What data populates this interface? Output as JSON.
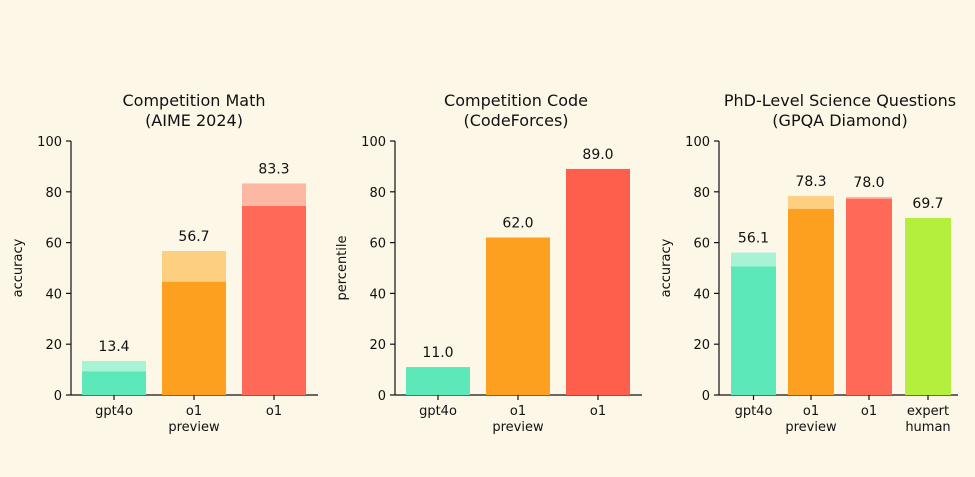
{
  "chart_data": [
    {
      "type": "bar",
      "title": [
        "Competition Math",
        "(AIME 2024)"
      ],
      "ylabel": "accuracy",
      "ylim": [
        0,
        100
      ],
      "yticks": [
        "0",
        "20",
        "40",
        "60",
        "80",
        "100"
      ],
      "categories": [
        [
          "gpt4o"
        ],
        [
          "o1",
          "preview"
        ],
        [
          "o1"
        ]
      ],
      "values": [
        13.4,
        56.7,
        83.3
      ],
      "base_values": [
        9.3,
        44.6,
        74.4
      ],
      "labels": [
        "13.4",
        "56.7",
        "83.3"
      ],
      "colors": [
        "#5ce8b9",
        "#fda020",
        "#fe6a57"
      ],
      "top_colors": [
        "#a8f2d6",
        "#fdd081",
        "#fdb8a4"
      ]
    },
    {
      "type": "bar",
      "title": [
        "Competition Code",
        "(CodeForces)"
      ],
      "ylabel": "percentile",
      "ylim": [
        0,
        100
      ],
      "yticks": [
        "0",
        "20",
        "40",
        "60",
        "80",
        "100"
      ],
      "categories": [
        [
          "gpt4o"
        ],
        [
          "o1",
          "preview"
        ],
        [
          "o1"
        ]
      ],
      "values": [
        11.0,
        62.0,
        89.0
      ],
      "base_values": [
        11.0,
        62.0,
        89.0
      ],
      "labels": [
        "11.0",
        "62.0",
        "89.0"
      ],
      "colors": [
        "#5ce8b9",
        "#fda020",
        "#fe5f4d"
      ],
      "top_colors": [
        "#a8f2d6",
        "#fdd081",
        "#fdb8a4"
      ]
    },
    {
      "type": "bar",
      "title": [
        "PhD-Level Science Questions",
        "(GPQA Diamond)"
      ],
      "ylabel": "accuracy",
      "ylim": [
        0,
        100
      ],
      "yticks": [
        "0",
        "20",
        "40",
        "60",
        "80",
        "100"
      ],
      "categories": [
        [
          "gpt4o"
        ],
        [
          "o1",
          "preview"
        ],
        [
          "o1"
        ],
        [
          "expert",
          "human"
        ]
      ],
      "values": [
        56.1,
        78.3,
        78.0,
        69.7
      ],
      "base_values": [
        50.6,
        73.3,
        77.3,
        69.7
      ],
      "labels": [
        "56.1",
        "78.3",
        "78.0",
        "69.7"
      ],
      "colors": [
        "#5ce8b9",
        "#fda020",
        "#fe6a57",
        "#b3ef3c"
      ],
      "top_colors": [
        "#a8f2d6",
        "#fdd081",
        "#fdb8a4",
        "#d9f79b"
      ]
    }
  ]
}
